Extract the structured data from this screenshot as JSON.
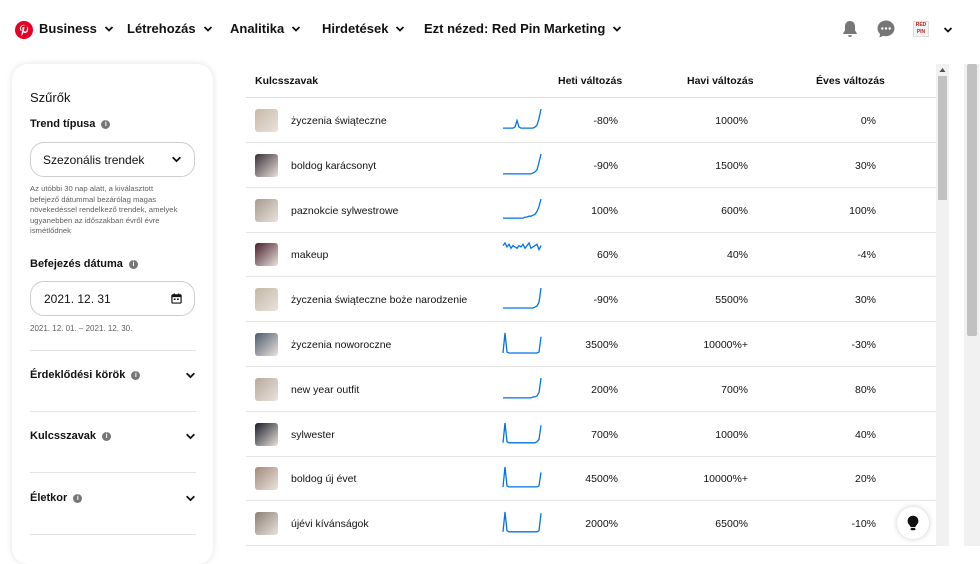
{
  "nav": {
    "items": [
      {
        "label": "Business"
      },
      {
        "label": "Létrehozás"
      },
      {
        "label": "Analitika"
      },
      {
        "label": "Hirdetések"
      },
      {
        "label": "Ezt nézed: Red Pin Marketing"
      }
    ],
    "logo_icon": "pinterest-logo-icon",
    "icons": [
      "notifications-bell-icon",
      "messages-icon",
      "account-avatar",
      "account-chevron-icon"
    ],
    "avatar_text": "RED PIN",
    "brand_color": "#e60023"
  },
  "filters": {
    "title": "Szűrők",
    "trend_type": {
      "label": "Trend típusa",
      "value": "Szezonális trendek",
      "help": "Az utóbbi 30 nap alatt, a kiválasztott befejező dátummal bezárólag magas növekedéssel rendelkező trendek, amelyek ugyanebben az időszakban évről évre ismétlődnek"
    },
    "end_date": {
      "label": "Befejezés dátuma",
      "value": "2021. 12. 31",
      "range": "2021. 12. 01. – 2021. 12. 30."
    },
    "sections": [
      {
        "label": "Érdeklődési körök"
      },
      {
        "label": "Kulcsszavak"
      },
      {
        "label": "Életkor"
      }
    ]
  },
  "table": {
    "headers": {
      "keyword": "Kulcsszavak",
      "weekly": "Heti változás",
      "monthly": "Havi változás",
      "yearly": "Éves változás"
    },
    "rows": [
      {
        "keyword": "życzenia świąteczne",
        "weekly": "-80%",
        "monthly": "1000%",
        "yearly": "0%",
        "spark": [
          2,
          2,
          2,
          2,
          2,
          2,
          3,
          10,
          3,
          2,
          2,
          2,
          2,
          2,
          2,
          2,
          3,
          5,
          12,
          22
        ],
        "thumb_color": "#c8b9a6"
      },
      {
        "keyword": "boldog karácsonyt",
        "weekly": "-90%",
        "monthly": "1500%",
        "yearly": "30%",
        "spark": [
          1,
          1,
          1,
          1,
          1,
          1,
          1,
          1,
          1,
          1,
          1,
          1,
          1,
          1,
          1,
          2,
          3,
          5,
          12,
          20
        ],
        "thumb_color": "#3a2e36"
      },
      {
        "keyword": "paznokcie sylwestrowe",
        "weekly": "100%",
        "monthly": "600%",
        "yearly": "100%",
        "spark": [
          2,
          2,
          2,
          2,
          2,
          2,
          2,
          2,
          2,
          2,
          2,
          3,
          3,
          4,
          4,
          5,
          6,
          9,
          14,
          22
        ],
        "thumb_color": "#a79a8e"
      },
      {
        "keyword": "makeup",
        "weekly": "60%",
        "monthly": "40%",
        "yearly": "-4%",
        "spark": [
          14,
          16,
          13,
          15,
          12,
          14,
          13,
          12,
          14,
          13,
          15,
          12,
          14,
          16,
          12,
          13,
          14,
          15,
          11,
          14
        ],
        "thumb_color": "#4a1e2c"
      },
      {
        "keyword": "życzenia świąteczne boże narodzenie",
        "weekly": "-90%",
        "monthly": "5500%",
        "yearly": "30%",
        "spark": [
          1,
          1,
          1,
          1,
          1,
          1,
          1,
          1,
          1,
          1,
          1,
          1,
          1,
          1,
          1,
          1,
          2,
          3,
          7,
          22
        ],
        "thumb_color": "#c4b7a5"
      },
      {
        "keyword": "życzenia noworoczne",
        "weekly": "3500%",
        "monthly": "10000%+",
        "yearly": "-30%",
        "spark": [
          1,
          22,
          2,
          1,
          1,
          1,
          1,
          1,
          1,
          1,
          1,
          1,
          1,
          1,
          1,
          1,
          1,
          1,
          2,
          18
        ],
        "thumb_color": "#4c5a6e"
      },
      {
        "keyword": "new year outfit",
        "weekly": "200%",
        "monthly": "700%",
        "yearly": "80%",
        "spark": [
          1,
          1,
          1,
          1,
          1,
          1,
          1,
          1,
          1,
          1,
          1,
          1,
          1,
          1,
          1,
          2,
          2,
          3,
          6,
          20
        ],
        "thumb_color": "#b8a99d"
      },
      {
        "keyword": "sylwester",
        "weekly": "700%",
        "monthly": "1000%",
        "yearly": "40%",
        "spark": [
          1,
          18,
          2,
          1,
          1,
          1,
          1,
          1,
          1,
          1,
          1,
          1,
          1,
          1,
          1,
          1,
          1,
          2,
          4,
          16
        ],
        "thumb_color": "#1b1b2a"
      },
      {
        "keyword": "boldog új évet",
        "weekly": "4500%",
        "monthly": "10000%+",
        "yearly": "20%",
        "spark": [
          1,
          20,
          2,
          1,
          1,
          1,
          1,
          1,
          1,
          1,
          1,
          1,
          1,
          1,
          1,
          1,
          1,
          1,
          2,
          15
        ],
        "thumb_color": "#a38a7c"
      },
      {
        "keyword": "újévi kívánságok",
        "weekly": "2000%",
        "monthly": "6500%",
        "yearly": "-10%",
        "spark": [
          1,
          18,
          2,
          1,
          1,
          1,
          1,
          1,
          1,
          1,
          1,
          1,
          1,
          1,
          1,
          1,
          1,
          1,
          2,
          17
        ],
        "thumb_color": "#8b7f74"
      }
    ],
    "spark_color": "#0074e8"
  },
  "help_icon": "lightbulb-icon"
}
